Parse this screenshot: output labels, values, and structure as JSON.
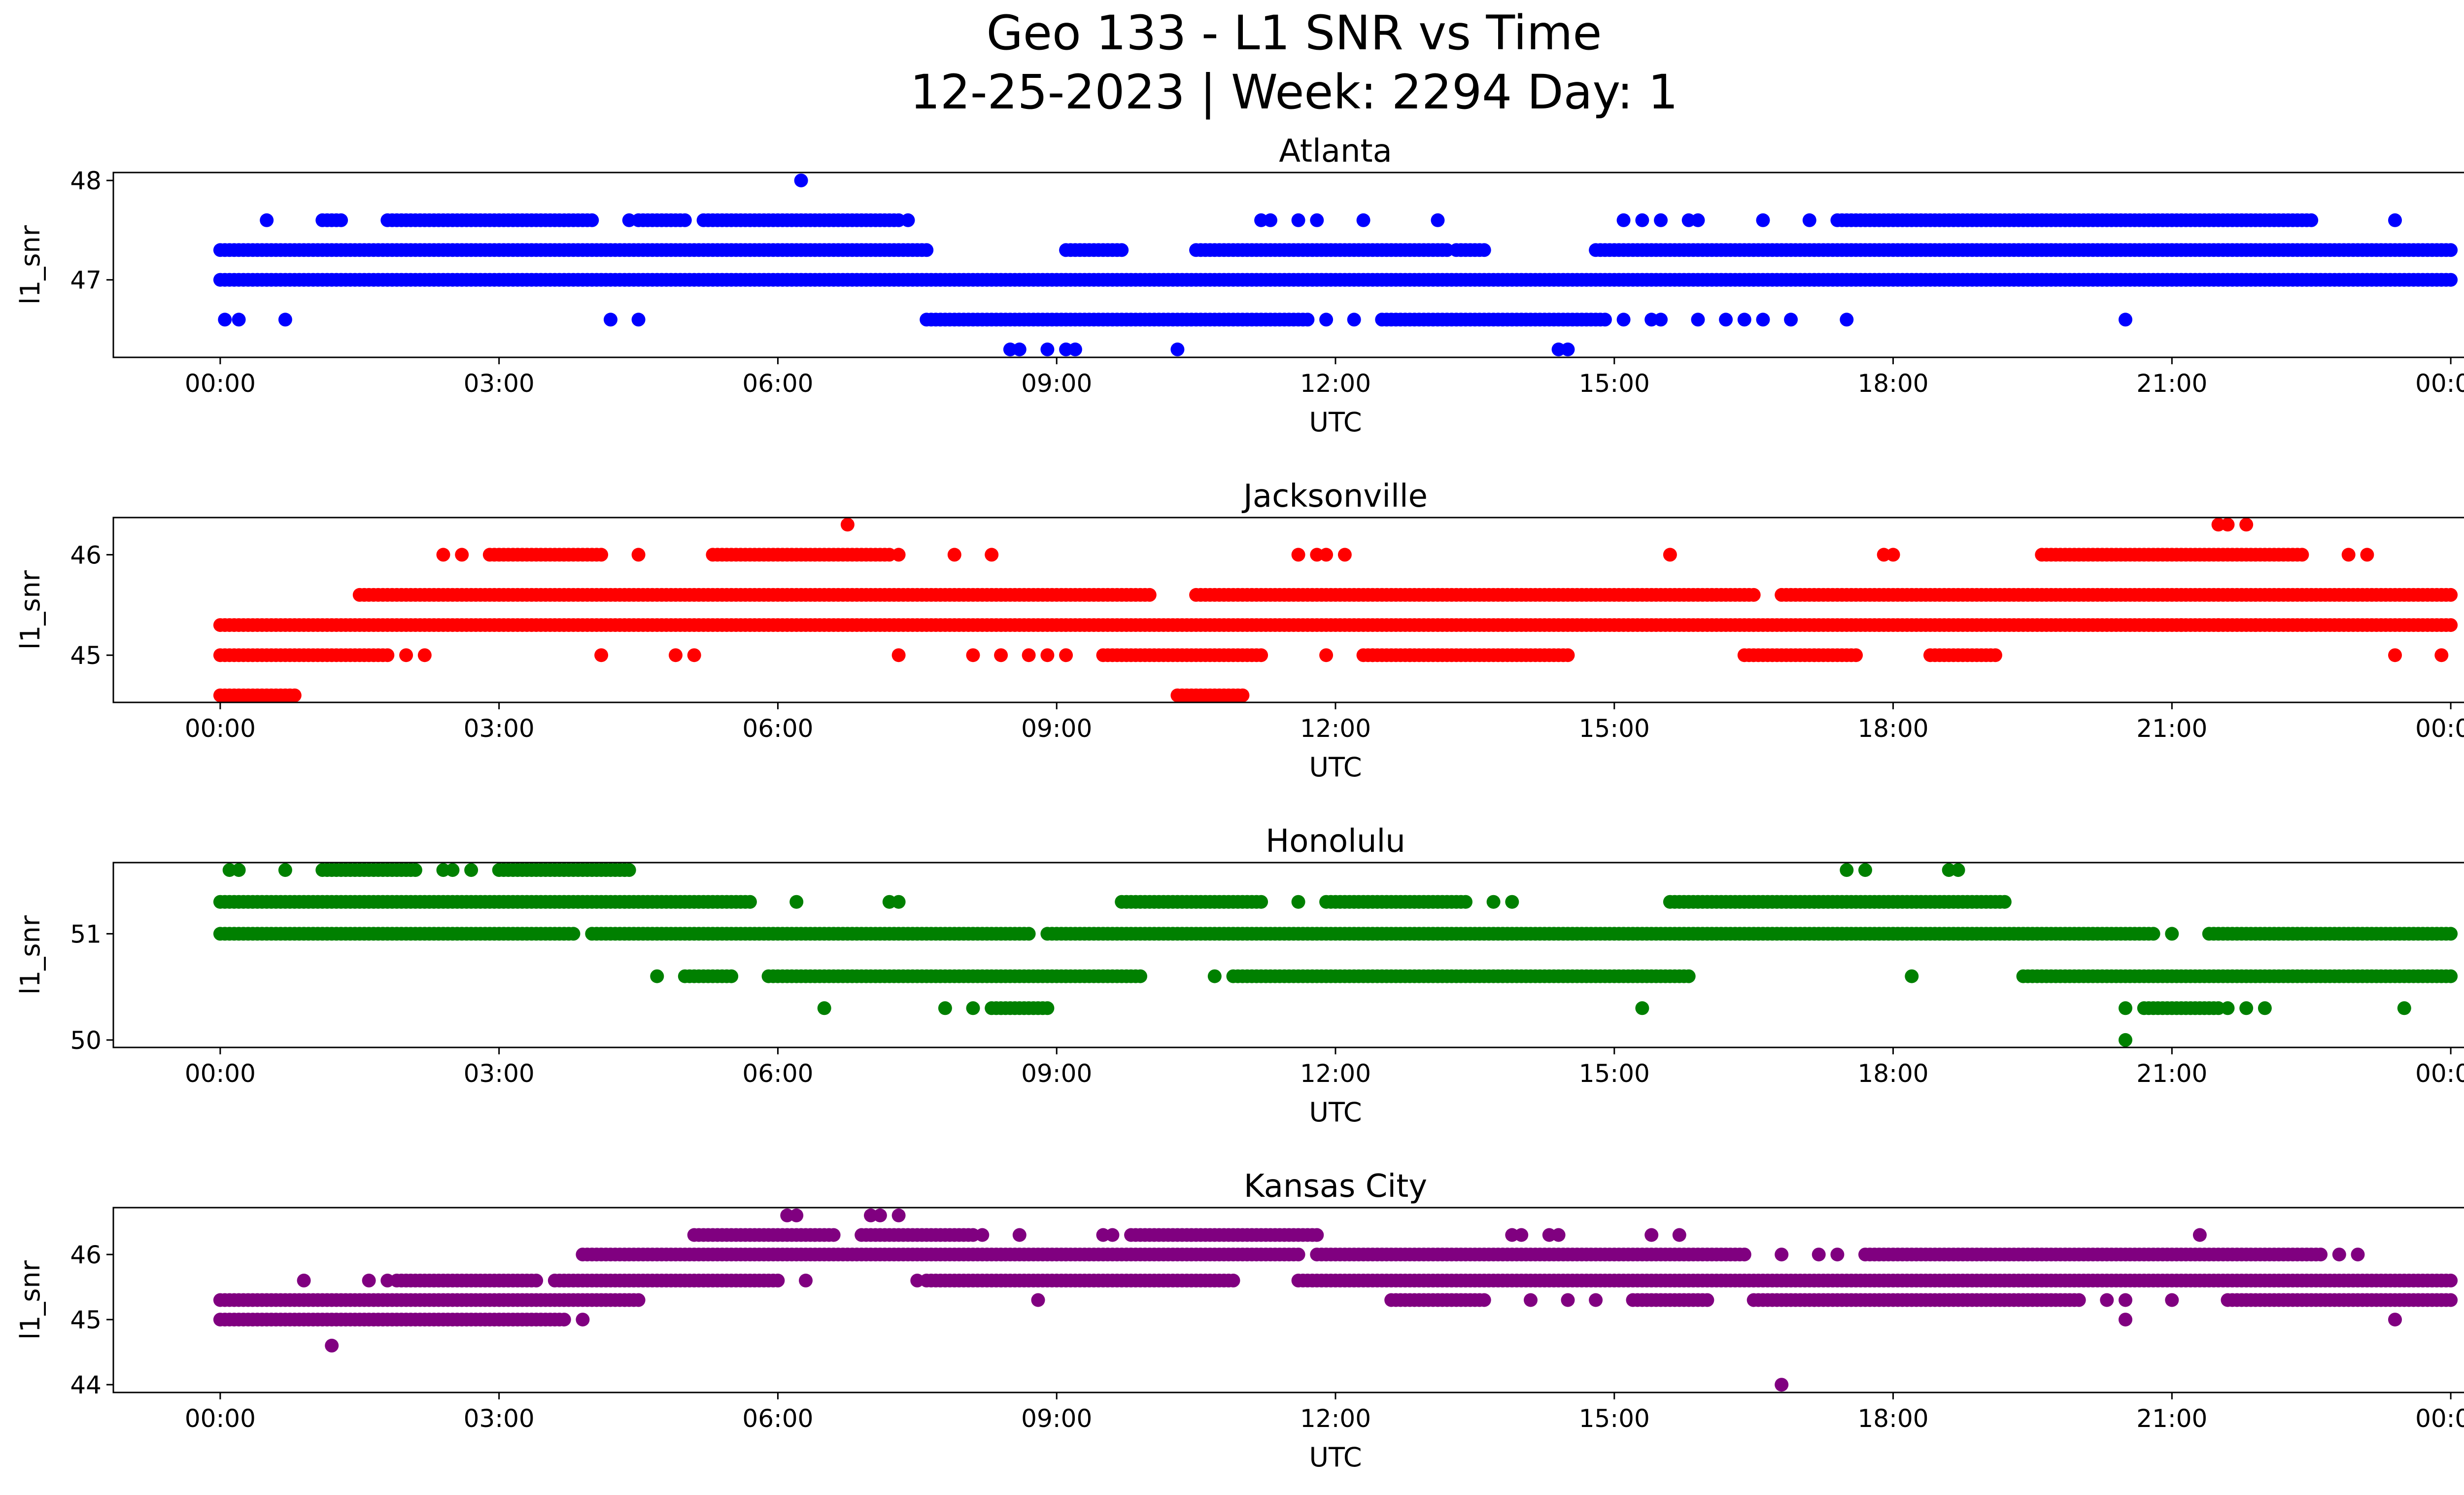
{
  "title_line1": "Geo 133 - L1 SNR vs Time",
  "title_line2": "12-25-2023 | Week: 2294 Day: 1",
  "chart_data": [
    {
      "type": "scatter",
      "title": "Atlanta",
      "xlabel": "UTC",
      "ylabel": "l1_snr",
      "color": "#0000ff",
      "x_unit": "hours UTC since 00:00",
      "xlim": [
        -1.15,
        25.15
      ],
      "ylim": [
        46.22,
        48.08
      ],
      "x_ticks": [
        0,
        3,
        6,
        9,
        12,
        15,
        18,
        21,
        24
      ],
      "x_tick_labels": [
        "00:00",
        "03:00",
        "06:00",
        "09:00",
        "12:00",
        "15:00",
        "18:00",
        "21:00",
        "00:00"
      ],
      "y_ticks": [
        47,
        48
      ],
      "bands": [
        {
          "y": 47.0,
          "ranges": [
            [
              0,
              24
            ]
          ]
        },
        {
          "y": 47.3,
          "ranges": [
            [
              0,
              7.6
            ],
            [
              9.1,
              9.7
            ],
            [
              10.5,
              13.2
            ],
            [
              13.3,
              13.6
            ],
            [
              14.8,
              24
            ]
          ]
        },
        {
          "y": 47.6,
          "ranges": [
            [
              1.1,
              1.3
            ],
            [
              1.8,
              4.0
            ],
            [
              4.5,
              5.0
            ],
            [
              5.2,
              7.3
            ],
            [
              17.4,
              22.5
            ]
          ]
        },
        {
          "y": 46.6,
          "ranges": [
            [
              7.6,
              11.7
            ],
            [
              12.5,
              14.9
            ]
          ]
        }
      ],
      "points": [
        {
          "x": 0.05,
          "y": 46.6
        },
        {
          "x": 0.2,
          "y": 46.6
        },
        {
          "x": 0.7,
          "y": 46.6
        },
        {
          "x": 4.2,
          "y": 46.6
        },
        {
          "x": 4.5,
          "y": 46.6
        },
        {
          "x": 11.9,
          "y": 46.6
        },
        {
          "x": 12.2,
          "y": 46.6
        },
        {
          "x": 15.1,
          "y": 46.6
        },
        {
          "x": 15.4,
          "y": 46.6
        },
        {
          "x": 15.5,
          "y": 46.6
        },
        {
          "x": 15.9,
          "y": 46.6
        },
        {
          "x": 16.2,
          "y": 46.6
        },
        {
          "x": 16.4,
          "y": 46.6
        },
        {
          "x": 16.6,
          "y": 46.6
        },
        {
          "x": 16.9,
          "y": 46.6
        },
        {
          "x": 17.5,
          "y": 46.6
        },
        {
          "x": 20.5,
          "y": 46.6
        },
        {
          "x": 0.5,
          "y": 47.6
        },
        {
          "x": 4.4,
          "y": 47.6
        },
        {
          "x": 7.4,
          "y": 47.6
        },
        {
          "x": 11.2,
          "y": 47.6
        },
        {
          "x": 11.3,
          "y": 47.6
        },
        {
          "x": 11.6,
          "y": 47.6
        },
        {
          "x": 11.8,
          "y": 47.6
        },
        {
          "x": 12.3,
          "y": 47.6
        },
        {
          "x": 13.1,
          "y": 47.6
        },
        {
          "x": 15.1,
          "y": 47.6
        },
        {
          "x": 15.3,
          "y": 47.6
        },
        {
          "x": 15.5,
          "y": 47.6
        },
        {
          "x": 15.8,
          "y": 47.6
        },
        {
          "x": 15.9,
          "y": 47.6
        },
        {
          "x": 16.6,
          "y": 47.6
        },
        {
          "x": 17.1,
          "y": 47.6
        },
        {
          "x": 23.4,
          "y": 47.6
        },
        {
          "x": 8.5,
          "y": 46.3
        },
        {
          "x": 8.6,
          "y": 46.3
        },
        {
          "x": 8.9,
          "y": 46.3
        },
        {
          "x": 9.1,
          "y": 46.3
        },
        {
          "x": 9.2,
          "y": 46.3
        },
        {
          "x": 10.3,
          "y": 46.3
        },
        {
          "x": 14.4,
          "y": 46.3
        },
        {
          "x": 14.5,
          "y": 46.3
        },
        {
          "x": 6.25,
          "y": 48.0
        }
      ]
    },
    {
      "type": "scatter",
      "title": "Jacksonville",
      "xlabel": "UTC",
      "ylabel": "l1_snr",
      "color": "#ff0000",
      "x_unit": "hours UTC since 00:00",
      "xlim": [
        -1.15,
        25.15
      ],
      "ylim": [
        44.53,
        46.37
      ],
      "x_ticks": [
        0,
        3,
        6,
        9,
        12,
        15,
        18,
        21,
        24
      ],
      "x_tick_labels": [
        "00:00",
        "03:00",
        "06:00",
        "09:00",
        "12:00",
        "15:00",
        "18:00",
        "21:00",
        "00:00"
      ],
      "y_ticks": [
        45,
        46
      ],
      "bands": [
        {
          "y": 45.3,
          "ranges": [
            [
              0,
              24
            ]
          ]
        },
        {
          "y": 45.6,
          "ranges": [
            [
              1.5,
              10.0
            ],
            [
              10.5,
              16.5
            ],
            [
              16.8,
              24
            ]
          ]
        },
        {
          "y": 45.0,
          "ranges": [
            [
              0,
              1.8
            ],
            [
              9.5,
              11.2
            ],
            [
              16.4,
              17.6
            ],
            [
              18.4,
              19.1
            ],
            [
              12.3,
              14.5
            ]
          ]
        },
        {
          "y": 46.0,
          "ranges": [
            [
              2.9,
              4.1
            ],
            [
              5.3,
              7.2
            ],
            [
              19.6,
              22.4
            ]
          ]
        },
        {
          "y": 44.6,
          "ranges": [
            [
              0,
              0.8
            ],
            [
              10.3,
              11.0
            ]
          ]
        }
      ],
      "points": [
        {
          "x": 2.4,
          "y": 46.0
        },
        {
          "x": 2.6,
          "y": 46.0
        },
        {
          "x": 4.5,
          "y": 46.0
        },
        {
          "x": 7.3,
          "y": 46.0
        },
        {
          "x": 7.9,
          "y": 46.0
        },
        {
          "x": 8.3,
          "y": 46.0
        },
        {
          "x": 11.6,
          "y": 46.0
        },
        {
          "x": 11.8,
          "y": 46.0
        },
        {
          "x": 11.9,
          "y": 46.0
        },
        {
          "x": 12.1,
          "y": 46.0
        },
        {
          "x": 15.6,
          "y": 46.0
        },
        {
          "x": 17.9,
          "y": 46.0
        },
        {
          "x": 18.0,
          "y": 46.0
        },
        {
          "x": 22.9,
          "y": 46.0
        },
        {
          "x": 23.1,
          "y": 46.0
        },
        {
          "x": 6.75,
          "y": 46.3
        },
        {
          "x": 21.5,
          "y": 46.3
        },
        {
          "x": 21.6,
          "y": 46.3
        },
        {
          "x": 21.8,
          "y": 46.3
        },
        {
          "x": 2.0,
          "y": 45.0
        },
        {
          "x": 2.2,
          "y": 45.0
        },
        {
          "x": 4.1,
          "y": 45.0
        },
        {
          "x": 4.9,
          "y": 45.0
        },
        {
          "x": 5.1,
          "y": 45.0
        },
        {
          "x": 7.3,
          "y": 45.0
        },
        {
          "x": 8.1,
          "y": 45.0
        },
        {
          "x": 8.4,
          "y": 45.0
        },
        {
          "x": 8.7,
          "y": 45.0
        },
        {
          "x": 8.9,
          "y": 45.0
        },
        {
          "x": 9.1,
          "y": 45.0
        },
        {
          "x": 11.9,
          "y": 45.0
        },
        {
          "x": 12.4,
          "y": 45.0
        },
        {
          "x": 12.8,
          "y": 45.0
        },
        {
          "x": 23.4,
          "y": 45.0
        },
        {
          "x": 23.9,
          "y": 45.0
        },
        {
          "x": 20.8,
          "y": 45.3
        },
        {
          "x": 21.1,
          "y": 45.3
        },
        {
          "x": 21.5,
          "y": 45.3
        },
        {
          "x": 21.9,
          "y": 45.3
        }
      ]
    },
    {
      "type": "scatter",
      "title": "Honolulu",
      "xlabel": "UTC",
      "ylabel": "l1_snr",
      "color": "#008000",
      "x_unit": "hours UTC since 00:00",
      "xlim": [
        -1.15,
        25.15
      ],
      "ylim": [
        49.93,
        51.67
      ],
      "x_ticks": [
        0,
        3,
        6,
        9,
        12,
        15,
        18,
        21,
        24
      ],
      "x_tick_labels": [
        "00:00",
        "03:00",
        "06:00",
        "09:00",
        "12:00",
        "15:00",
        "18:00",
        "21:00",
        "00:00"
      ],
      "y_ticks": [
        50,
        51
      ],
      "bands": [
        {
          "y": 51.0,
          "ranges": [
            [
              0,
              3.8
            ],
            [
              4.0,
              8.7
            ],
            [
              8.9,
              20.8
            ],
            [
              21.4,
              24
            ]
          ]
        },
        {
          "y": 51.3,
          "ranges": [
            [
              0,
              5.7
            ],
            [
              9.7,
              11.2
            ],
            [
              11.9,
              13.4
            ],
            [
              15.6,
              19.2
            ]
          ]
        },
        {
          "y": 51.6,
          "ranges": [
            [
              1.1,
              2.1
            ],
            [
              3.0,
              4.4
            ]
          ]
        },
        {
          "y": 50.6,
          "ranges": [
            [
              5.0,
              5.5
            ],
            [
              5.9,
              9.9
            ],
            [
              10.9,
              15.8
            ],
            [
              19.4,
              24
            ]
          ]
        },
        {
          "y": 50.3,
          "ranges": [
            [
              8.3,
              8.9
            ],
            [
              20.7,
              21.5
            ]
          ]
        }
      ],
      "points": [
        {
          "x": 0.1,
          "y": 51.6
        },
        {
          "x": 0.2,
          "y": 51.6
        },
        {
          "x": 0.7,
          "y": 51.6
        },
        {
          "x": 2.4,
          "y": 51.6
        },
        {
          "x": 2.5,
          "y": 51.6
        },
        {
          "x": 2.7,
          "y": 51.6
        },
        {
          "x": 17.5,
          "y": 51.6
        },
        {
          "x": 17.7,
          "y": 51.6
        },
        {
          "x": 18.6,
          "y": 51.6
        },
        {
          "x": 18.7,
          "y": 51.6
        },
        {
          "x": 6.2,
          "y": 51.3
        },
        {
          "x": 7.2,
          "y": 51.3
        },
        {
          "x": 7.3,
          "y": 51.3
        },
        {
          "x": 11.6,
          "y": 51.3
        },
        {
          "x": 13.7,
          "y": 51.3
        },
        {
          "x": 13.9,
          "y": 51.3
        },
        {
          "x": 21.0,
          "y": 51.0
        },
        {
          "x": 4.7,
          "y": 50.6
        },
        {
          "x": 10.7,
          "y": 50.6
        },
        {
          "x": 18.2,
          "y": 50.6
        },
        {
          "x": 6.5,
          "y": 50.3
        },
        {
          "x": 7.8,
          "y": 50.3
        },
        {
          "x": 8.1,
          "y": 50.3
        },
        {
          "x": 15.3,
          "y": 50.3
        },
        {
          "x": 20.5,
          "y": 50.3
        },
        {
          "x": 21.6,
          "y": 50.3
        },
        {
          "x": 21.8,
          "y": 50.3
        },
        {
          "x": 22.0,
          "y": 50.3
        },
        {
          "x": 23.5,
          "y": 50.3
        },
        {
          "x": 20.5,
          "y": 50.0
        }
      ]
    },
    {
      "type": "scatter",
      "title": "Kansas City",
      "xlabel": "UTC",
      "ylabel": "l1_snr",
      "color": "#800080",
      "x_unit": "hours UTC since 00:00",
      "xlim": [
        -1.15,
        25.15
      ],
      "ylim": [
        43.88,
        46.72
      ],
      "x_ticks": [
        0,
        3,
        6,
        9,
        12,
        15,
        18,
        21,
        24
      ],
      "x_tick_labels": [
        "00:00",
        "03:00",
        "06:00",
        "09:00",
        "12:00",
        "15:00",
        "18:00",
        "21:00",
        "00:00"
      ],
      "y_ticks": [
        44,
        45,
        46
      ],
      "bands": [
        {
          "y": 45.3,
          "ranges": [
            [
              0,
              4.5
            ],
            [
              12.6,
              13.6
            ],
            [
              15.2,
              16.0
            ],
            [
              16.5,
              20.0
            ],
            [
              21.6,
              24
            ]
          ]
        },
        {
          "y": 45.0,
          "ranges": [
            [
              0,
              3.7
            ]
          ]
        },
        {
          "y": 45.6,
          "ranges": [
            [
              1.9,
              3.4
            ],
            [
              3.6,
              6.0
            ],
            [
              7.6,
              10.9
            ],
            [
              11.6,
              24
            ]
          ]
        },
        {
          "y": 46.0,
          "ranges": [
            [
              3.9,
              11.6
            ],
            [
              11.8,
              16.4
            ],
            [
              17.7,
              22.6
            ]
          ]
        },
        {
          "y": 46.3,
          "ranges": [
            [
              5.1,
              6.6
            ],
            [
              6.9,
              8.1
            ],
            [
              9.8,
              11.8
            ]
          ]
        }
      ],
      "points": [
        {
          "x": 0.9,
          "y": 45.6
        },
        {
          "x": 1.6,
          "y": 45.6
        },
        {
          "x": 1.8,
          "y": 45.6
        },
        {
          "x": 7.5,
          "y": 45.6
        },
        {
          "x": 6.1,
          "y": 46.6
        },
        {
          "x": 6.2,
          "y": 46.6
        },
        {
          "x": 7.0,
          "y": 46.6
        },
        {
          "x": 7.1,
          "y": 46.6
        },
        {
          "x": 7.3,
          "y": 46.6
        },
        {
          "x": 6.3,
          "y": 45.6
        },
        {
          "x": 8.8,
          "y": 45.3
        },
        {
          "x": 14.1,
          "y": 45.3
        },
        {
          "x": 14.5,
          "y": 45.3
        },
        {
          "x": 14.8,
          "y": 45.3
        },
        {
          "x": 20.3,
          "y": 45.3
        },
        {
          "x": 20.5,
          "y": 45.3
        },
        {
          "x": 21.0,
          "y": 45.3
        },
        {
          "x": 8.2,
          "y": 46.3
        },
        {
          "x": 8.6,
          "y": 46.3
        },
        {
          "x": 9.5,
          "y": 46.3
        },
        {
          "x": 9.6,
          "y": 46.3
        },
        {
          "x": 13.9,
          "y": 46.3
        },
        {
          "x": 14.0,
          "y": 46.3
        },
        {
          "x": 14.3,
          "y": 46.3
        },
        {
          "x": 14.4,
          "y": 46.3
        },
        {
          "x": 15.4,
          "y": 46.3
        },
        {
          "x": 15.7,
          "y": 46.3
        },
        {
          "x": 21.3,
          "y": 46.3
        },
        {
          "x": 16.8,
          "y": 46.0
        },
        {
          "x": 17.2,
          "y": 46.0
        },
        {
          "x": 17.4,
          "y": 46.0
        },
        {
          "x": 22.8,
          "y": 46.0
        },
        {
          "x": 23.0,
          "y": 46.0
        },
        {
          "x": 3.9,
          "y": 45.0
        },
        {
          "x": 20.5,
          "y": 45.0
        },
        {
          "x": 23.4,
          "y": 45.0
        },
        {
          "x": 1.2,
          "y": 44.6
        },
        {
          "x": 16.8,
          "y": 44.0
        }
      ]
    }
  ]
}
